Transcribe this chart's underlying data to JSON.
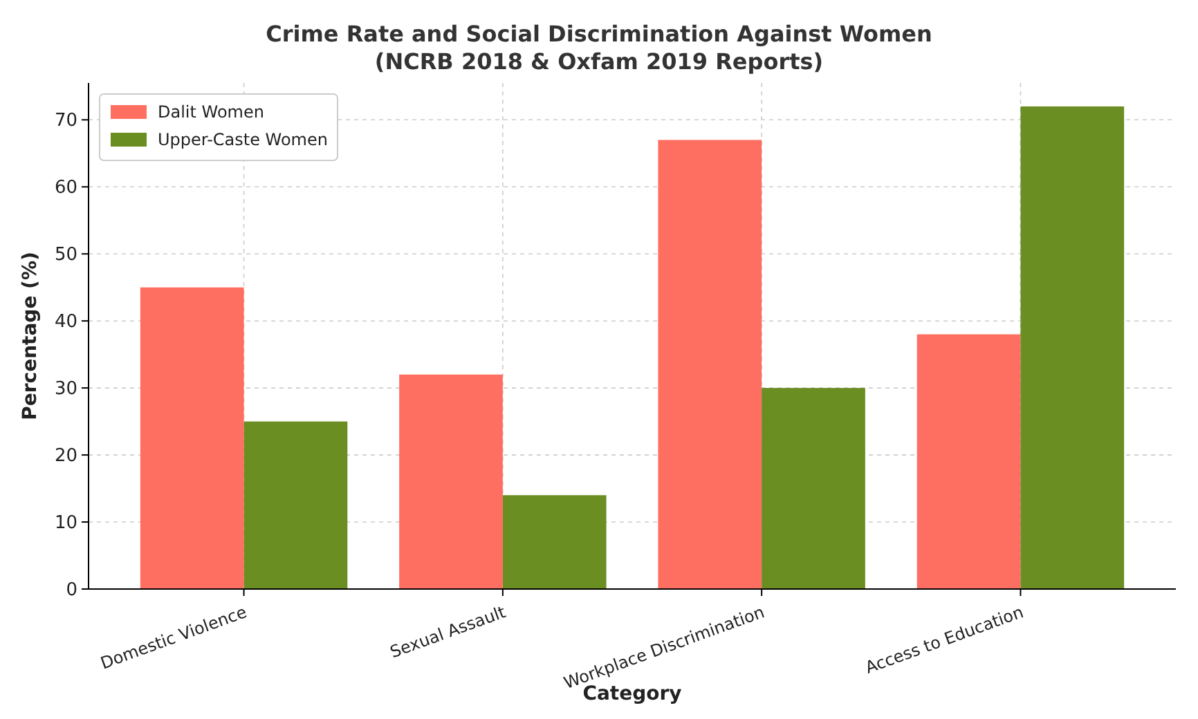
{
  "chart_data": {
    "type": "bar",
    "title": "Crime Rate and Social Discrimination Against Women\n(NCRB 2018 & Oxfam 2019 Reports)",
    "xlabel": "Category",
    "ylabel": "Percentage (%)",
    "categories": [
      "Domestic Violence",
      "Sexual Assault",
      "Workplace Discrimination",
      "Access to Education"
    ],
    "series": [
      {
        "name": "Dalit Women",
        "color": "#ff6f61",
        "values": [
          45,
          32,
          67,
          38
        ]
      },
      {
        "name": "Upper-Caste Women",
        "color": "#6b8e23",
        "values": [
          25,
          14,
          30,
          72
        ]
      }
    ],
    "ylim": [
      0,
      75.5
    ],
    "yticks": [
      0,
      10,
      20,
      30,
      40,
      50,
      60,
      70
    ],
    "grid": true,
    "legend": "top left"
  }
}
